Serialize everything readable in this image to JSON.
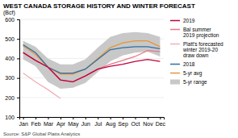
{
  "chart_data": {
    "type": "line",
    "title": "WEST CANADA STORAGE HISTORY AND WINTER FORECAST",
    "ylabel": "(Bcf)",
    "source": "Source: S&P Global Platts Analytics",
    "categories": [
      "Jan",
      "Feb",
      "Mar",
      "Apr",
      "May",
      "Jun",
      "Jul",
      "Aug",
      "Sep",
      "Oct",
      "Nov",
      "Dec"
    ],
    "ylim": [
      100,
      600
    ],
    "yticks": [
      100,
      200,
      300,
      400,
      500,
      600
    ],
    "grid": true,
    "legend": "right",
    "series": [
      {
        "name": "2019",
        "type": "line",
        "color": "#c0003c",
        "values": [
          430,
          390,
          355,
          290,
          280,
          310,
          345,
          360,
          370,
          385,
          395,
          385
        ]
      },
      {
        "name": "Bal summer\n2019 projection",
        "type": "line",
        "color": "#e8778a",
        "values": [
          430,
          390,
          355,
          290,
          280,
          310,
          345,
          370,
          390,
          410,
          440,
          435
        ]
      },
      {
        "name": "Platt's forecasted\nwinter 2019-20\ndraw down",
        "type": "line",
        "color": "#f0b0b8",
        "values": [
          325,
          280,
          240,
          195,
          null,
          null,
          null,
          null,
          null,
          null,
          null,
          null
        ]
      },
      {
        "name": "2018",
        "type": "line",
        "color": "#2e6fa3",
        "values": [
          470,
          430,
          355,
          325,
          325,
          345,
          395,
          445,
          455,
          460,
          460,
          450
        ]
      },
      {
        "name": "5-yr avg",
        "type": "line",
        "color": "#e8943a",
        "values": [
          465,
          420,
          355,
          320,
          320,
          345,
          400,
          455,
          480,
          490,
          490,
          460
        ]
      },
      {
        "name": "5-yr range",
        "type": "area",
        "color": "#c8c8c8",
        "upper": [
          490,
          460,
          400,
          370,
          370,
          395,
          455,
          510,
          530,
          535,
          530,
          510
        ],
        "lower": [
          395,
          360,
          280,
          245,
          250,
          275,
          330,
          385,
          415,
          430,
          435,
          410
        ]
      }
    ]
  }
}
